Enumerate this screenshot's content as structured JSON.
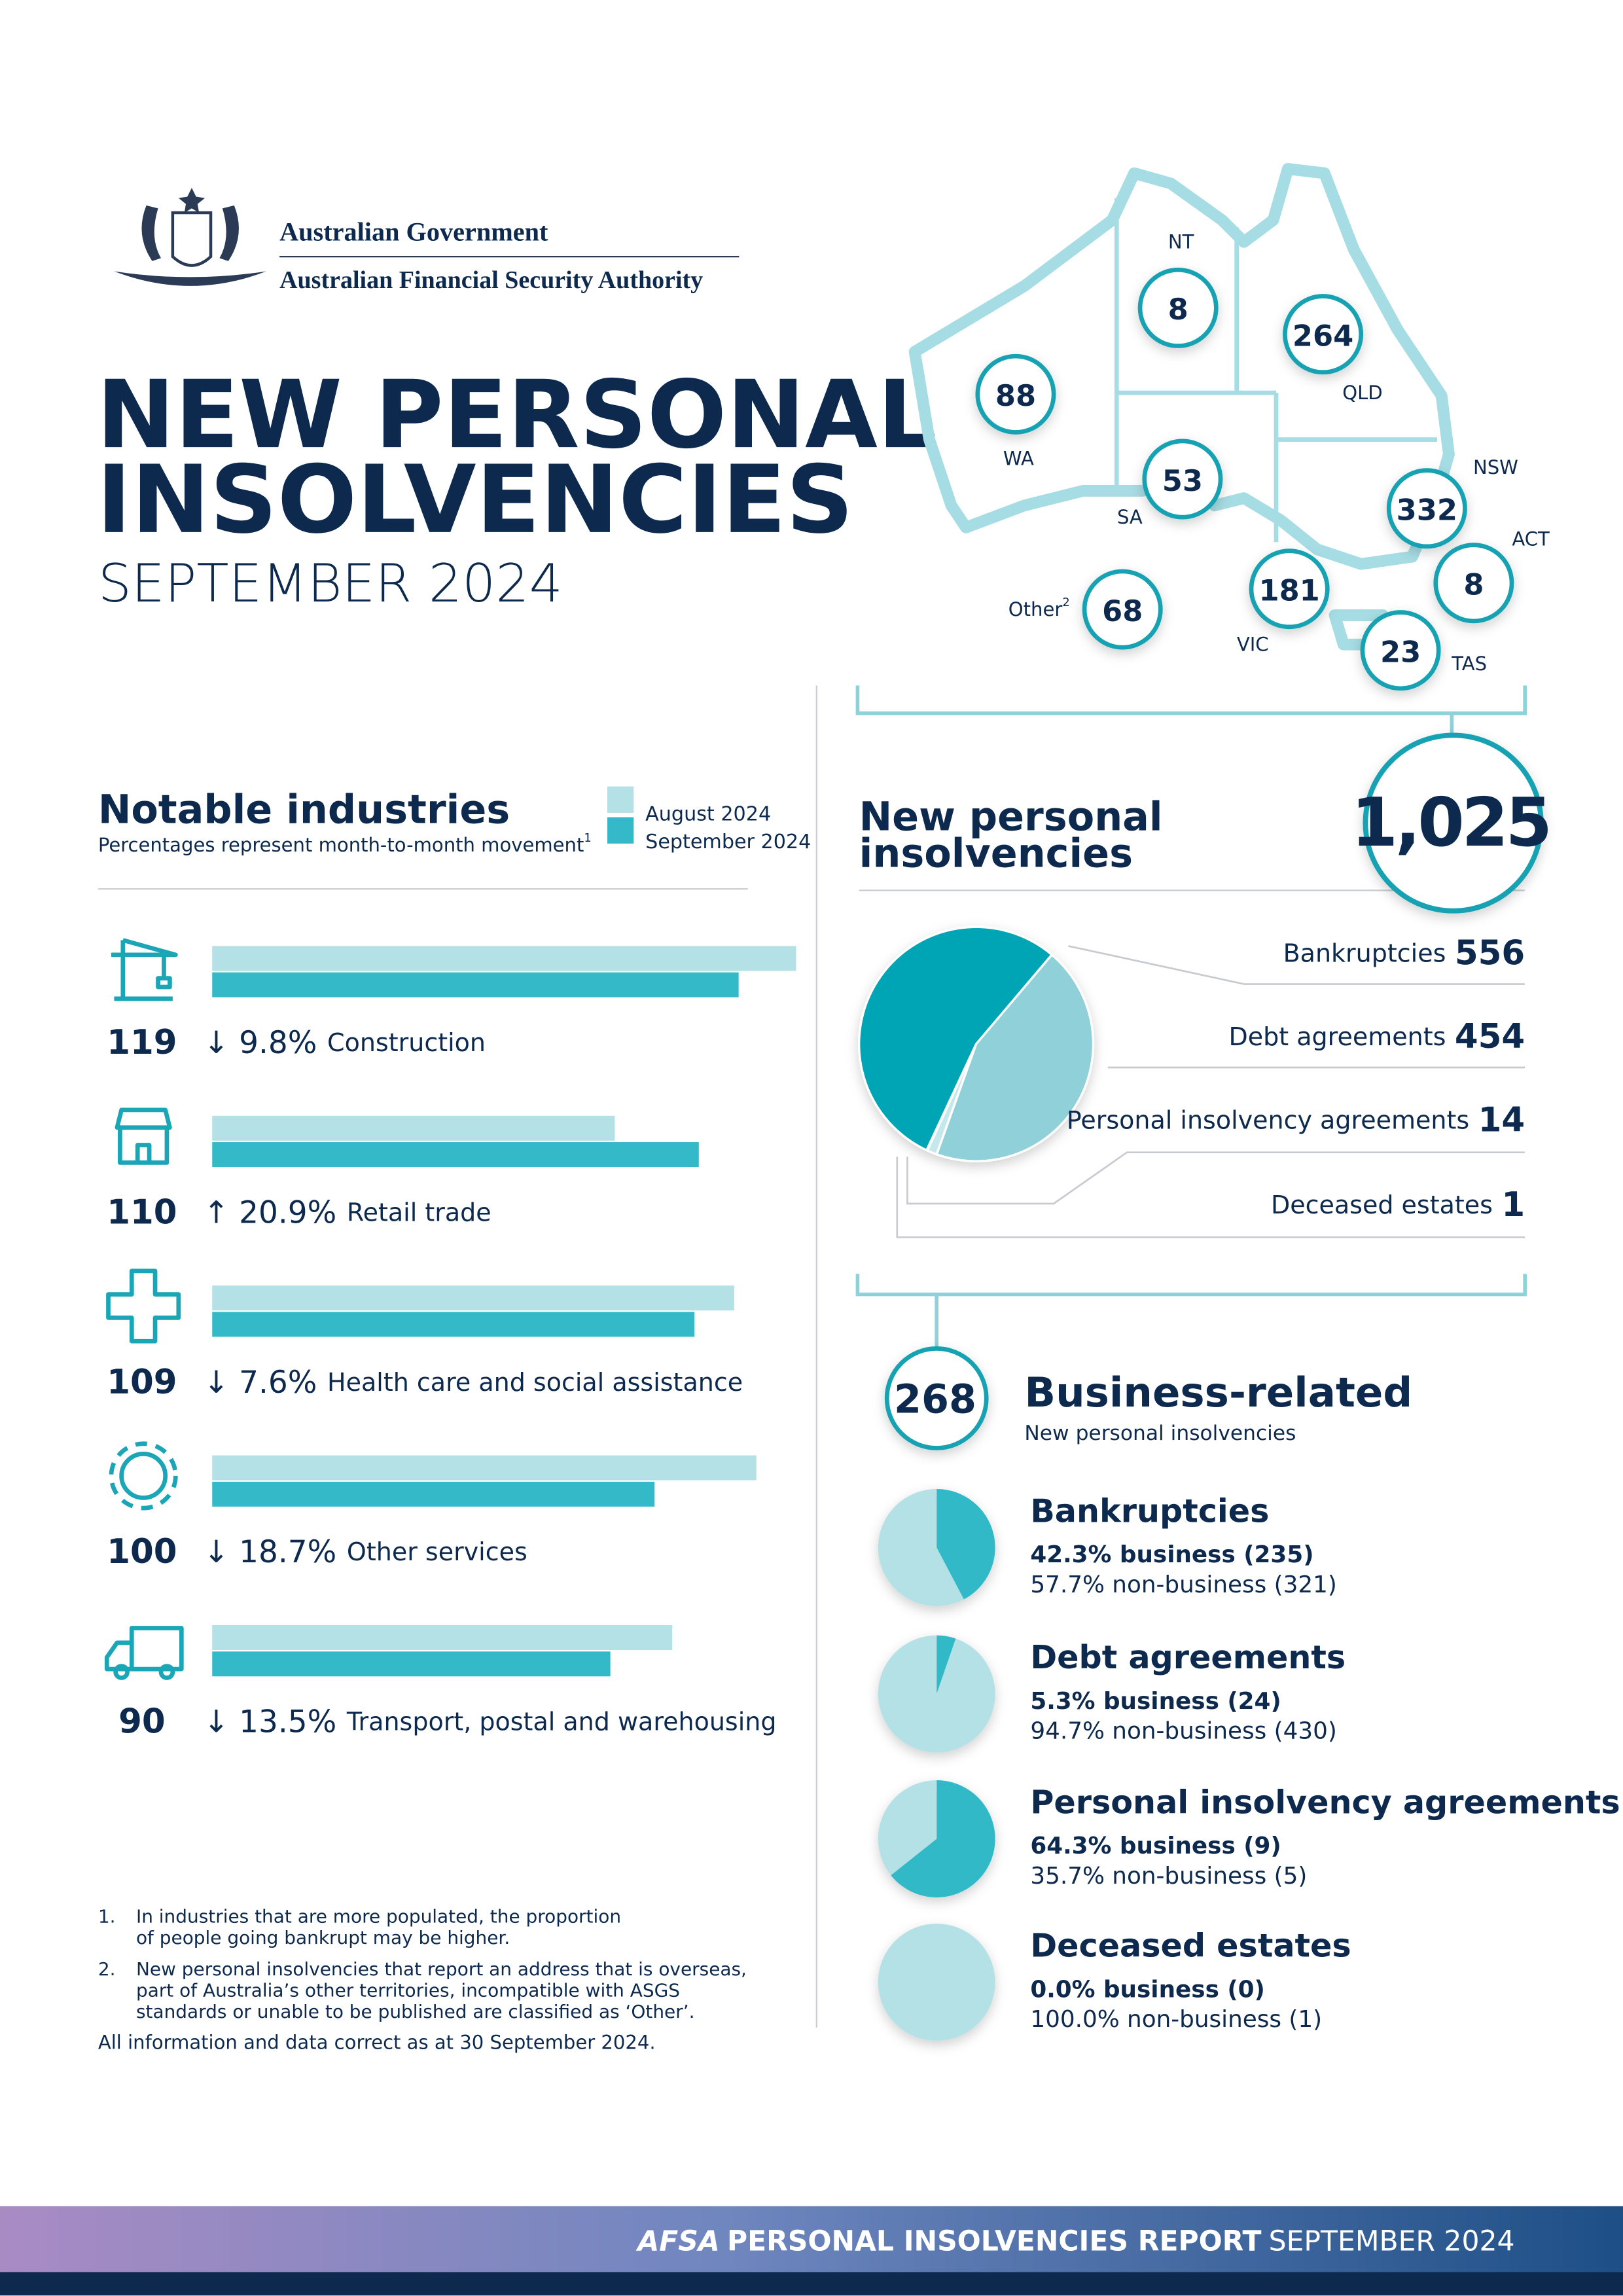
{
  "header": {
    "government": "Australian Government",
    "authority": "Australian Financial Security Authority",
    "title": [
      "NEW PERSONAL",
      "INSOLVENCIES"
    ],
    "subtitle": "SEPTEMBER 2024"
  },
  "map": {
    "regions": [
      {
        "name": "NT",
        "value": 8
      },
      {
        "name": "QLD",
        "value": 264
      },
      {
        "name": "WA",
        "value": 88
      },
      {
        "name": "SA",
        "value": 53
      },
      {
        "name": "NSW",
        "value": 332
      },
      {
        "name": "ACT",
        "value": 8
      },
      {
        "name": "VIC",
        "value": 181
      },
      {
        "name": "TAS",
        "value": 23
      },
      {
        "name": "Other",
        "note": "2",
        "value": 68
      }
    ]
  },
  "business": {
    "value": 268,
    "title": "Business-related",
    "subtitle": "New personal insolvencies"
  },
  "chart_data": [
    {
      "type": "bar",
      "orientation": "horizontal",
      "title": "Notable industries",
      "subtitle": "Percentages represent  month-to-month movement",
      "subtitle_note": "1",
      "categories": [
        "Construction",
        "Retail trade",
        "Health care and social assistance",
        "Other services",
        "Transport, postal and warehousing"
      ],
      "series": [
        {
          "name": "August 2024",
          "color": "#b3e1e6",
          "values": [
            132,
            91,
            118,
            123,
            104
          ]
        },
        {
          "name": "September 2024",
          "color": "#33b9c7",
          "values": [
            119,
            110,
            109,
            100,
            90
          ]
        }
      ],
      "changes": [
        "↓ 9.8%",
        "↑ 20.9%",
        "↓ 7.6%",
        "↓ 18.7%",
        "↓ 13.5%"
      ]
    },
    {
      "type": "pie",
      "title": [
        "New personal",
        "insolvencies"
      ],
      "total": {
        "value": 1025,
        "label": "1,025"
      },
      "categories": [
        "Bankruptcies",
        "Debt agreements",
        "Personal insolvency agreements",
        "Deceased estates"
      ],
      "values": [
        556,
        454,
        14,
        1
      ],
      "colors": [
        "#00a5b5",
        "#8fd0d9",
        "#c5e8ec",
        "#e0f3f5"
      ]
    },
    {
      "type": "pie",
      "title": "Bankruptcies",
      "values": [
        42.3,
        57.7
      ],
      "value_labels": [
        "42.3% business (235)",
        "57.7% non-business (321)"
      ],
      "colors": [
        "#33b9c7",
        "#b3e1e6"
      ]
    },
    {
      "type": "pie",
      "title": "Debt agreements",
      "values": [
        5.3,
        94.7
      ],
      "value_labels": [
        "5.3% business (24)",
        "94.7% non-business (430)"
      ],
      "colors": [
        "#33b9c7",
        "#b3e1e6"
      ]
    },
    {
      "type": "pie",
      "title": "Personal insolvency agreements",
      "values": [
        64.3,
        35.7
      ],
      "value_labels": [
        "64.3% business (9)",
        "35.7% non-business (5)"
      ],
      "colors": [
        "#33b9c7",
        "#b3e1e6"
      ]
    },
    {
      "type": "pie",
      "title": "Deceased estates",
      "values": [
        0.0,
        100.0
      ],
      "value_labels": [
        "0.0% business (0)",
        "100.0% non-business (1)"
      ],
      "colors": [
        "#33b9c7",
        "#b3e1e6"
      ]
    }
  ],
  "footnotes": [
    {
      "number": "1.",
      "lines": [
        "In industries that are more populated, the proportion",
        "of people going bankrupt may be higher."
      ]
    },
    {
      "number": "2.",
      "lines": [
        "New personal insolvencies that report an address that is overseas,",
        "part of Australia’s other territories, incompatible with ASGS",
        "standards or unable to be published are classified as ‘Other’."
      ]
    }
  ],
  "data_note": "All information and data correct as at 30 September 2024.",
  "footer": {
    "brand": "AFSA",
    "report": "PERSONAL INSOLVENCIES REPORT",
    "date": "SEPTEMBER 2024"
  }
}
